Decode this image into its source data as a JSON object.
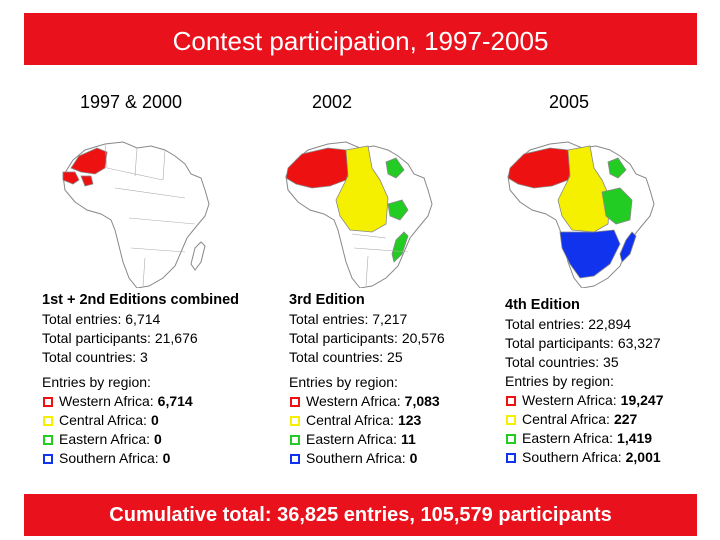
{
  "title": "Contest participation, 1997-2005",
  "footer": "Cumulative total: 36,825 entries, 105,579 participants",
  "colors": {
    "banner": "#e8111c",
    "western": "#ee1111",
    "central": "#f4f000",
    "eastern": "#22cc22",
    "southern": "#1133ee"
  },
  "periods": [
    {
      "year": "1997 & 2000",
      "edition": "1st + 2nd Editions combined",
      "entries": "Total entries: 6,714",
      "participants": "Total participants: 21,676",
      "countries": "Total countries: 3",
      "by_region": "Entries by region:",
      "regions": [
        {
          "label": "Western Africa:",
          "value": "6,714"
        },
        {
          "label": "Central Africa:",
          "value": "0"
        },
        {
          "label": "Eastern Africa:",
          "value": "0"
        },
        {
          "label": "Southern Africa:",
          "value": "0"
        }
      ]
    },
    {
      "year": "2002",
      "edition": "3rd Edition",
      "entries": "Total entries: 7,217",
      "participants": "Total participants: 20,576",
      "countries": "Total countries: 25",
      "by_region": "Entries by region:",
      "regions": [
        {
          "label": "Western Africa:",
          "value": "7,083"
        },
        {
          "label": "Central Africa:",
          "value": "123"
        },
        {
          "label": "Eastern Africa:",
          "value": "11"
        },
        {
          "label": "Southern Africa:",
          "value": "0"
        }
      ]
    },
    {
      "year": "2005",
      "edition": "4th Edition",
      "entries": "Total entries: 22,894",
      "participants": "Total participants: 63,327",
      "countries": "Total countries: 35",
      "by_region": "Entries by region:",
      "regions": [
        {
          "label": "Western Africa:",
          "value": "19,247"
        },
        {
          "label": "Central Africa:",
          "value": "227"
        },
        {
          "label": "Eastern Africa:",
          "value": "1,419"
        },
        {
          "label": "Southern Africa:",
          "value": "2,001"
        }
      ]
    }
  ]
}
